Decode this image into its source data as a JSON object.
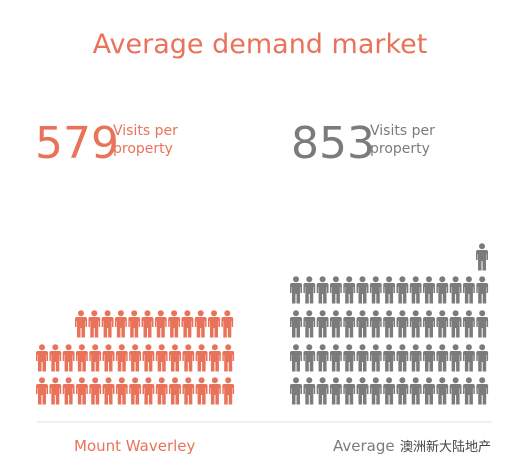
{
  "title": "Average demand market",
  "items": [
    {
      "number": "579",
      "unit": "Visits per property",
      "name": "Mount Waverley"
    },
    {
      "number": "853",
      "unit": "Visits per property",
      "name": "Average"
    }
  ],
  "watermark": "澳洲新大陆地产"
}
